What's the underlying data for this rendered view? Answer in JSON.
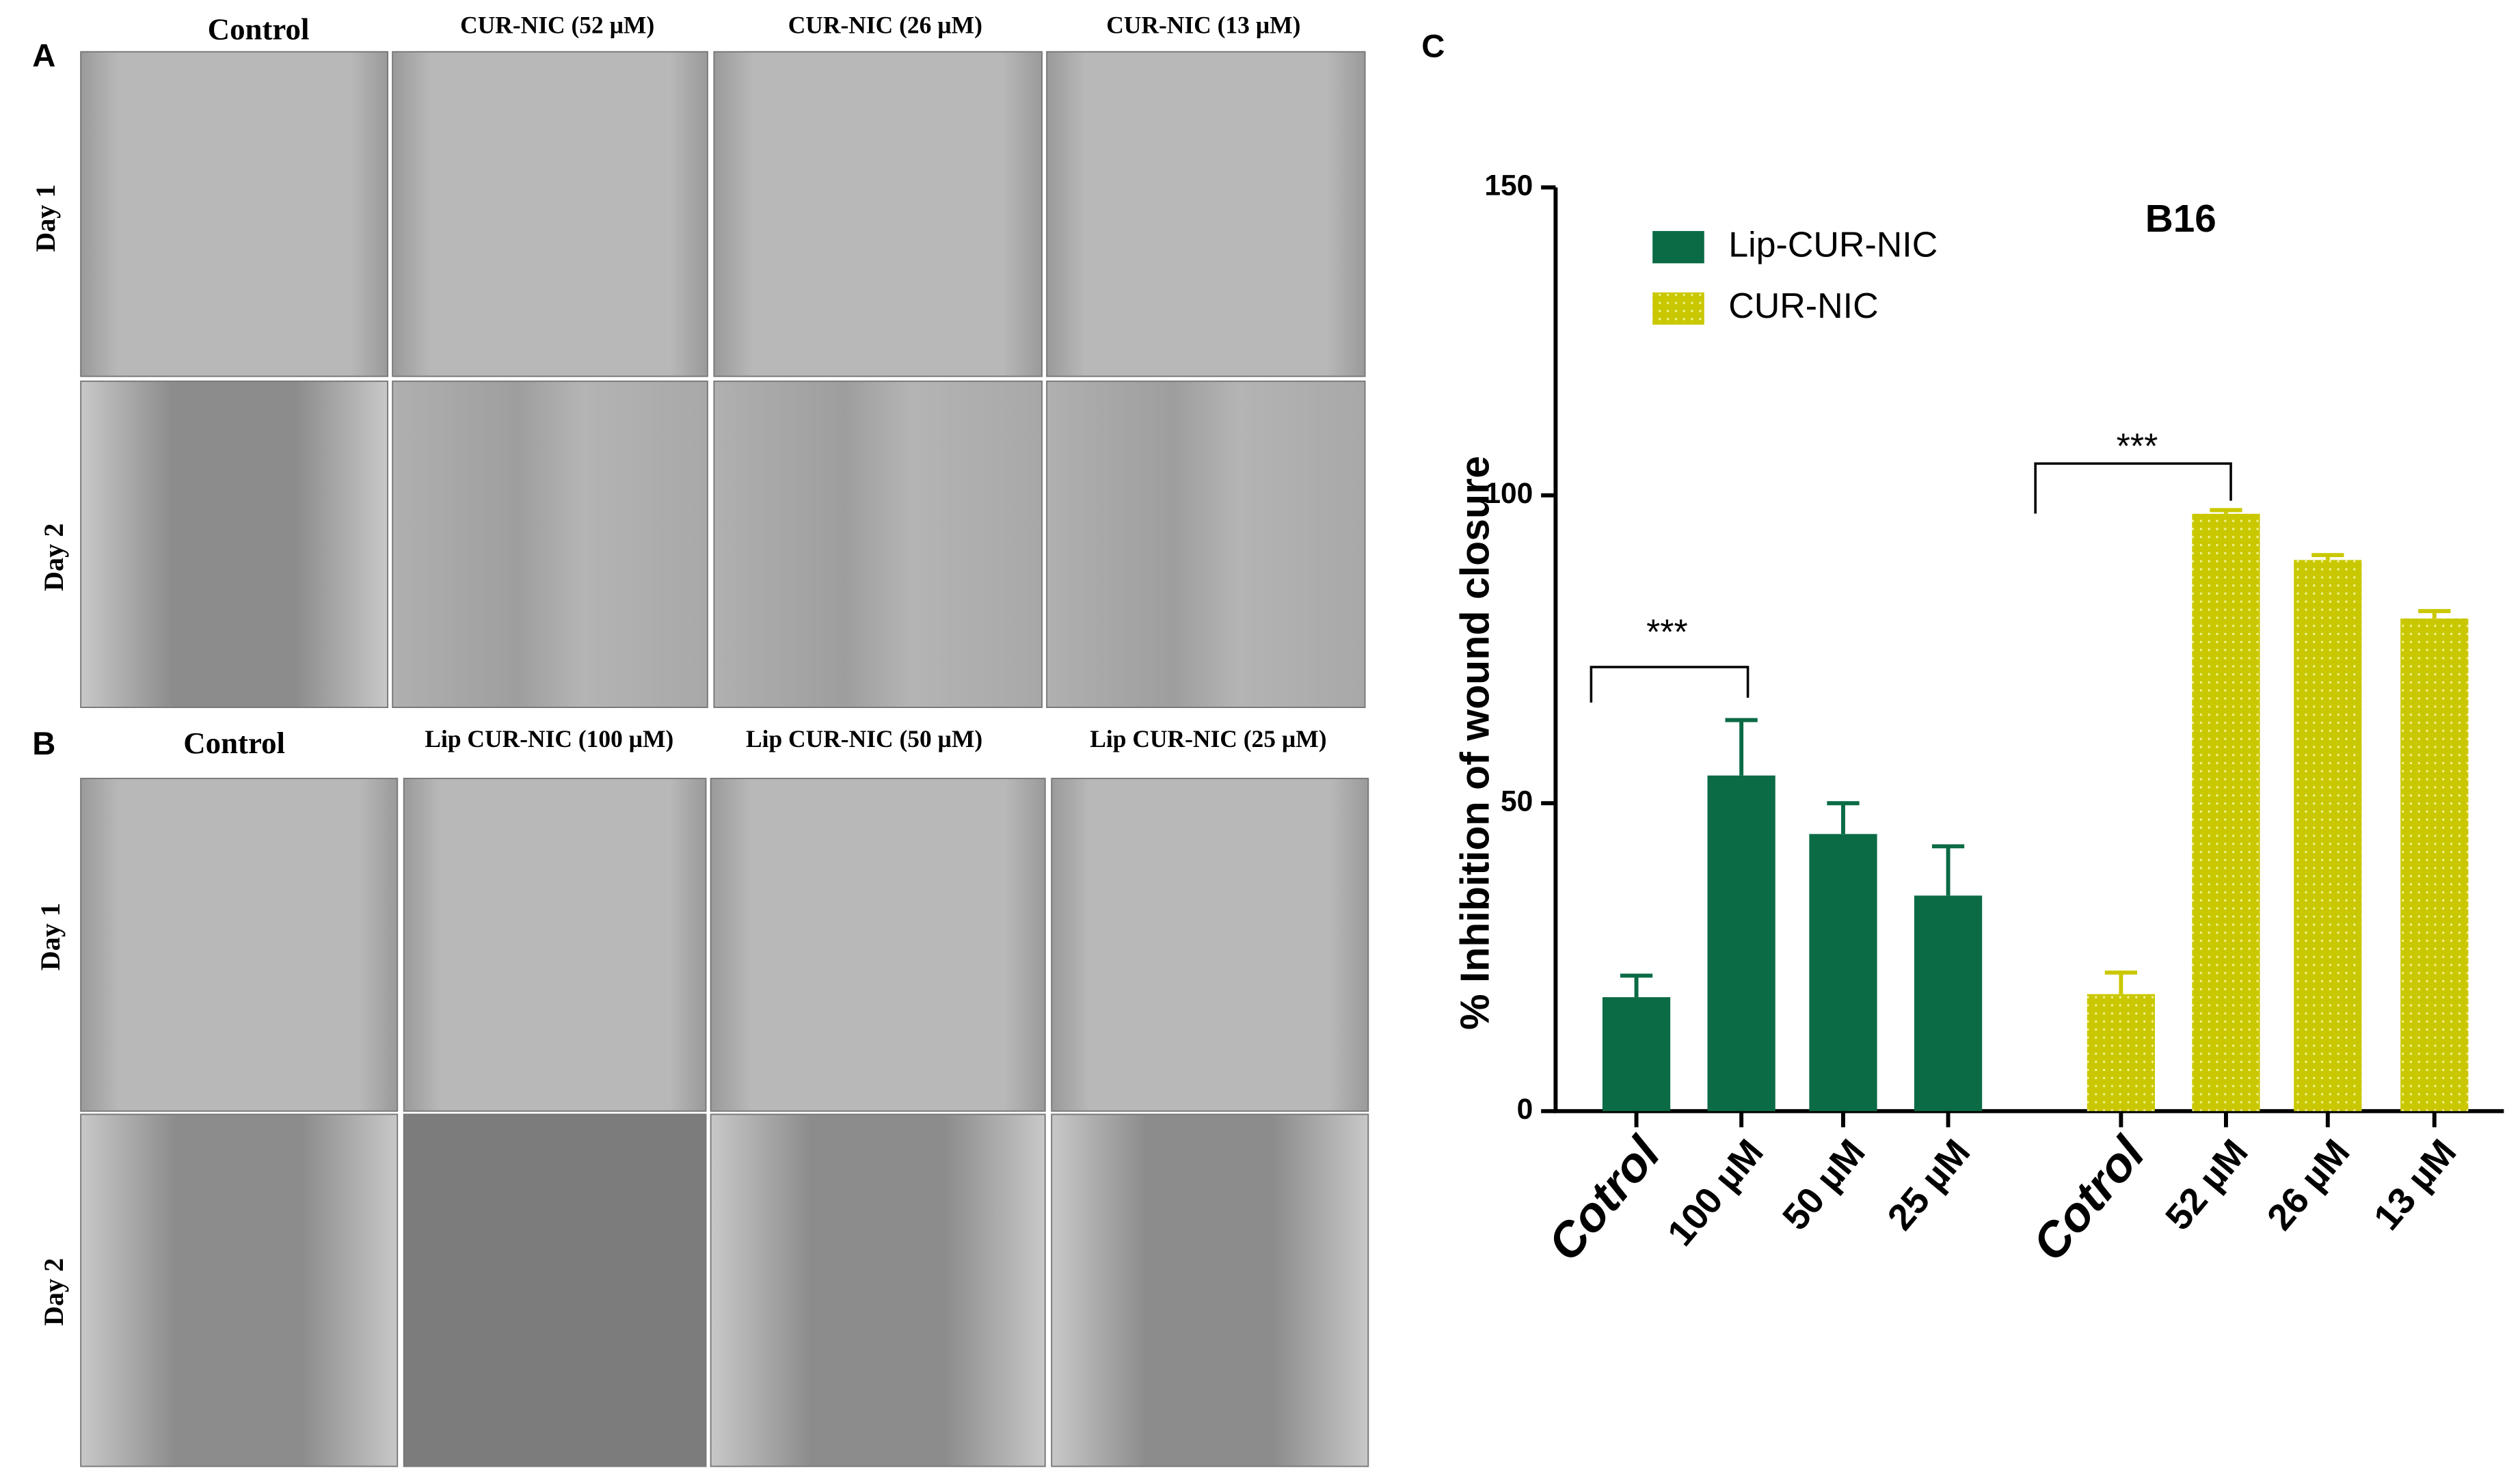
{
  "panels": [
    {
      "label": "A",
      "columns": [
        "Control",
        "CUR-NIC (52 µM)",
        "CUR-NIC (26 µM)",
        "CUR-NIC (13 µM)"
      ],
      "rows": [
        "Day 1",
        "Day 2"
      ]
    },
    {
      "label": "B",
      "columns": [
        "Control",
        "Lip CUR-NIC (100 µM)",
        "Lip CUR-NIC (50 µM)",
        "Lip CUR-NIC (25 µM)"
      ],
      "rows": [
        "Day 1",
        "Day 2"
      ]
    }
  ],
  "chart_data": {
    "type": "bar",
    "panel_label": "C",
    "title": "B16",
    "y_label": "% Inhibition of wound closure",
    "categories": [
      "Cotrol",
      "100 µM",
      "50  µM",
      "25 µM",
      "Cotrol",
      "52 µM",
      "26 µM",
      "13 µM"
    ],
    "series": [
      {
        "name": "Lip-CUR-NIC",
        "color": "#0b6b45",
        "values": [
          18.5,
          54.5,
          45,
          35,
          null,
          null,
          null,
          null
        ],
        "errors": [
          3.5,
          9,
          5,
          8,
          null,
          null,
          null,
          null
        ]
      },
      {
        "name": "CUR-NIC",
        "color": "#c9c800",
        "values": [
          null,
          null,
          null,
          null,
          19,
          97,
          89.5,
          80
        ],
        "errors": [
          null,
          null,
          null,
          null,
          3.5,
          0.6,
          0.8,
          1.2
        ]
      }
    ],
    "annotations": [
      "***",
      "***"
    ],
    "ylim": [
      0,
      150
    ],
    "yticks": [
      0,
      50,
      100,
      150
    ],
    "grid": false,
    "legend": "upper left"
  }
}
